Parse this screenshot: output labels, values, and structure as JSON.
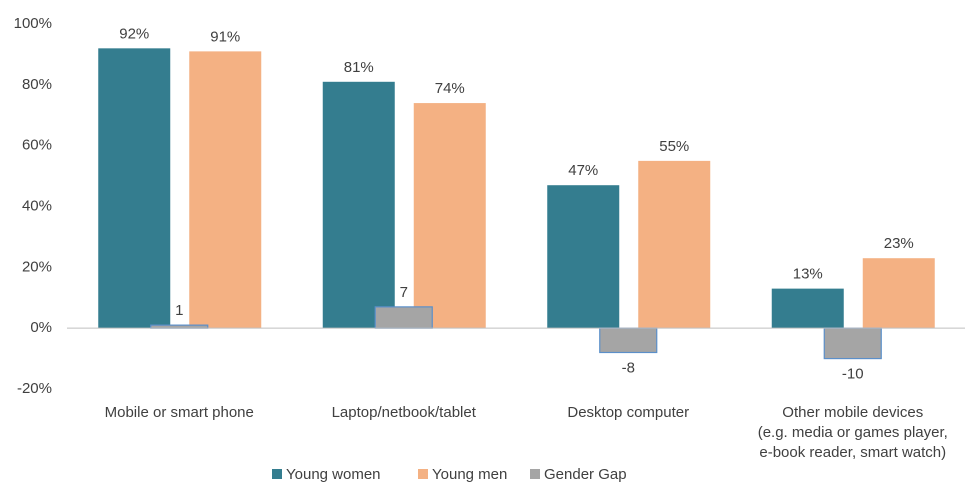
{
  "chart_data": {
    "type": "bar",
    "categories": [
      "Mobile or smart phone",
      "Laptop/netbook/tablet",
      "Desktop computer",
      "Other mobile devices\n(e.g. media or games player,\ne-book reader, smart watch)"
    ],
    "series": [
      {
        "name": "Young women",
        "color": "#347d8f",
        "values": [
          92,
          81,
          47,
          13
        ],
        "value_labels": [
          "92%",
          "81%",
          "47%",
          "13%"
        ]
      },
      {
        "name": "Young men",
        "color": "#f4b183",
        "values": [
          91,
          74,
          55,
          23
        ],
        "value_labels": [
          "91%",
          "74%",
          "55%",
          "23%"
        ]
      },
      {
        "name": "Gender Gap",
        "color": "#a5a5a5",
        "values": [
          1,
          7,
          -8,
          -10
        ]
      }
    ],
    "ylim": [
      -20,
      100
    ],
    "yticks": [
      {
        "value": -20,
        "label": "-20%"
      },
      {
        "value": 0,
        "label": "0%"
      },
      {
        "value": 20,
        "label": "20%"
      },
      {
        "value": 40,
        "label": "40%"
      },
      {
        "value": 60,
        "label": "60%"
      },
      {
        "value": 80,
        "label": "80%"
      },
      {
        "value": 100,
        "label": "100%"
      }
    ],
    "grid": false
  }
}
